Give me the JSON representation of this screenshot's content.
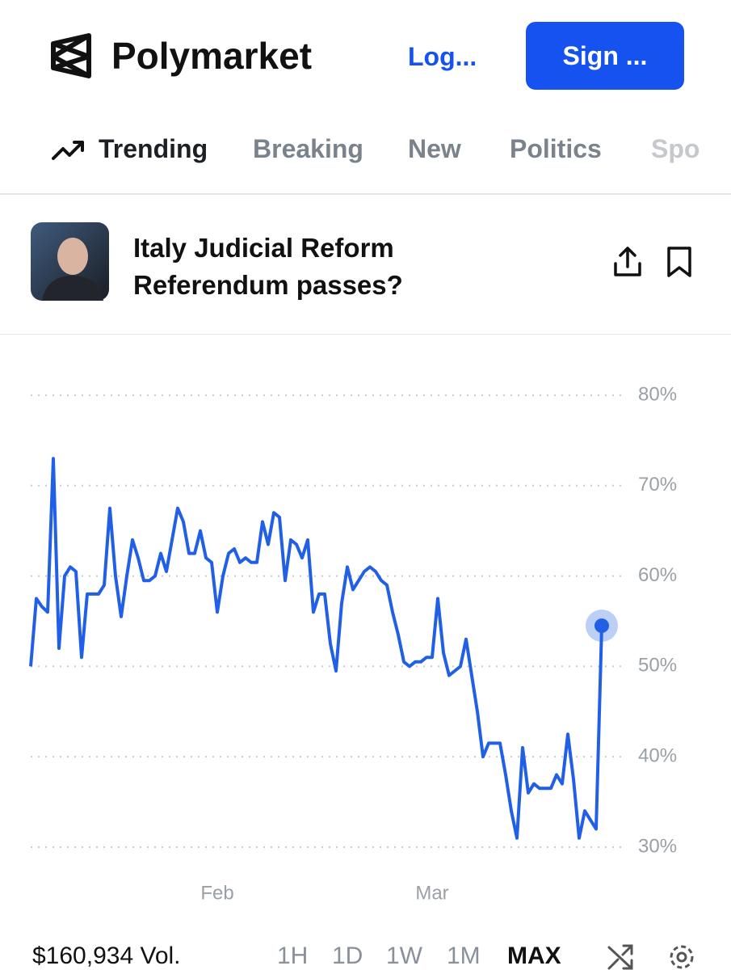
{
  "header": {
    "brand": "Polymarket",
    "login": "Log...",
    "signup": "Sign ..."
  },
  "tabs": [
    "Trending",
    "Breaking",
    "New",
    "Politics",
    "Spo"
  ],
  "market": {
    "title": "Italy Judicial Reform Referendum passes?"
  },
  "chart_data": {
    "type": "line",
    "color": "#2160e6",
    "values": [
      50,
      57.5,
      56.6,
      56,
      73,
      52,
      60,
      61,
      60.5,
      51,
      58,
      58,
      58,
      59,
      67.5,
      60,
      55.5,
      60,
      64,
      62,
      59.5,
      59.5,
      60,
      62.5,
      60.5,
      64,
      67.5,
      66,
      62.5,
      62.5,
      65,
      62,
      61.5,
      56,
      60,
      62.5,
      63,
      61.5,
      62,
      61.5,
      61.5,
      66,
      63.5,
      67,
      66.5,
      59.5,
      64,
      63.5,
      62,
      64,
      56,
      58,
      58,
      52.5,
      49.5,
      57,
      61,
      58.5,
      59.5,
      60.5,
      61,
      60.5,
      59.5,
      59,
      56,
      53.5,
      50.5,
      50,
      50.5,
      50.5,
      51,
      51,
      57.5,
      51.5,
      49,
      49.5,
      50,
      53,
      49,
      45,
      40,
      41.5,
      41.5,
      41.5,
      38,
      34,
      31,
      41,
      36,
      37,
      36.5,
      36.5,
      36.5,
      38,
      37,
      42.5,
      37.5,
      31,
      34,
      33,
      32,
      54.5
    ],
    "xlim": [
      0,
      101
    ],
    "xticks": [
      {
        "value": 33,
        "label": "Feb"
      },
      {
        "value": 71,
        "label": "Mar"
      }
    ],
    "ylim": [
      27,
      85
    ],
    "yticks": [
      {
        "value": 30,
        "label": "30%"
      },
      {
        "value": 40,
        "label": "40%"
      },
      {
        "value": 50,
        "label": "50%"
      },
      {
        "value": 60,
        "label": "60%"
      },
      {
        "value": 70,
        "label": "70%"
      },
      {
        "value": 80,
        "label": "80%"
      }
    ],
    "grid": true
  },
  "volume": "$160,934 Vol.",
  "ranges": [
    "1H",
    "1D",
    "1W",
    "1M",
    "MAX"
  ],
  "selected_range": 4
}
